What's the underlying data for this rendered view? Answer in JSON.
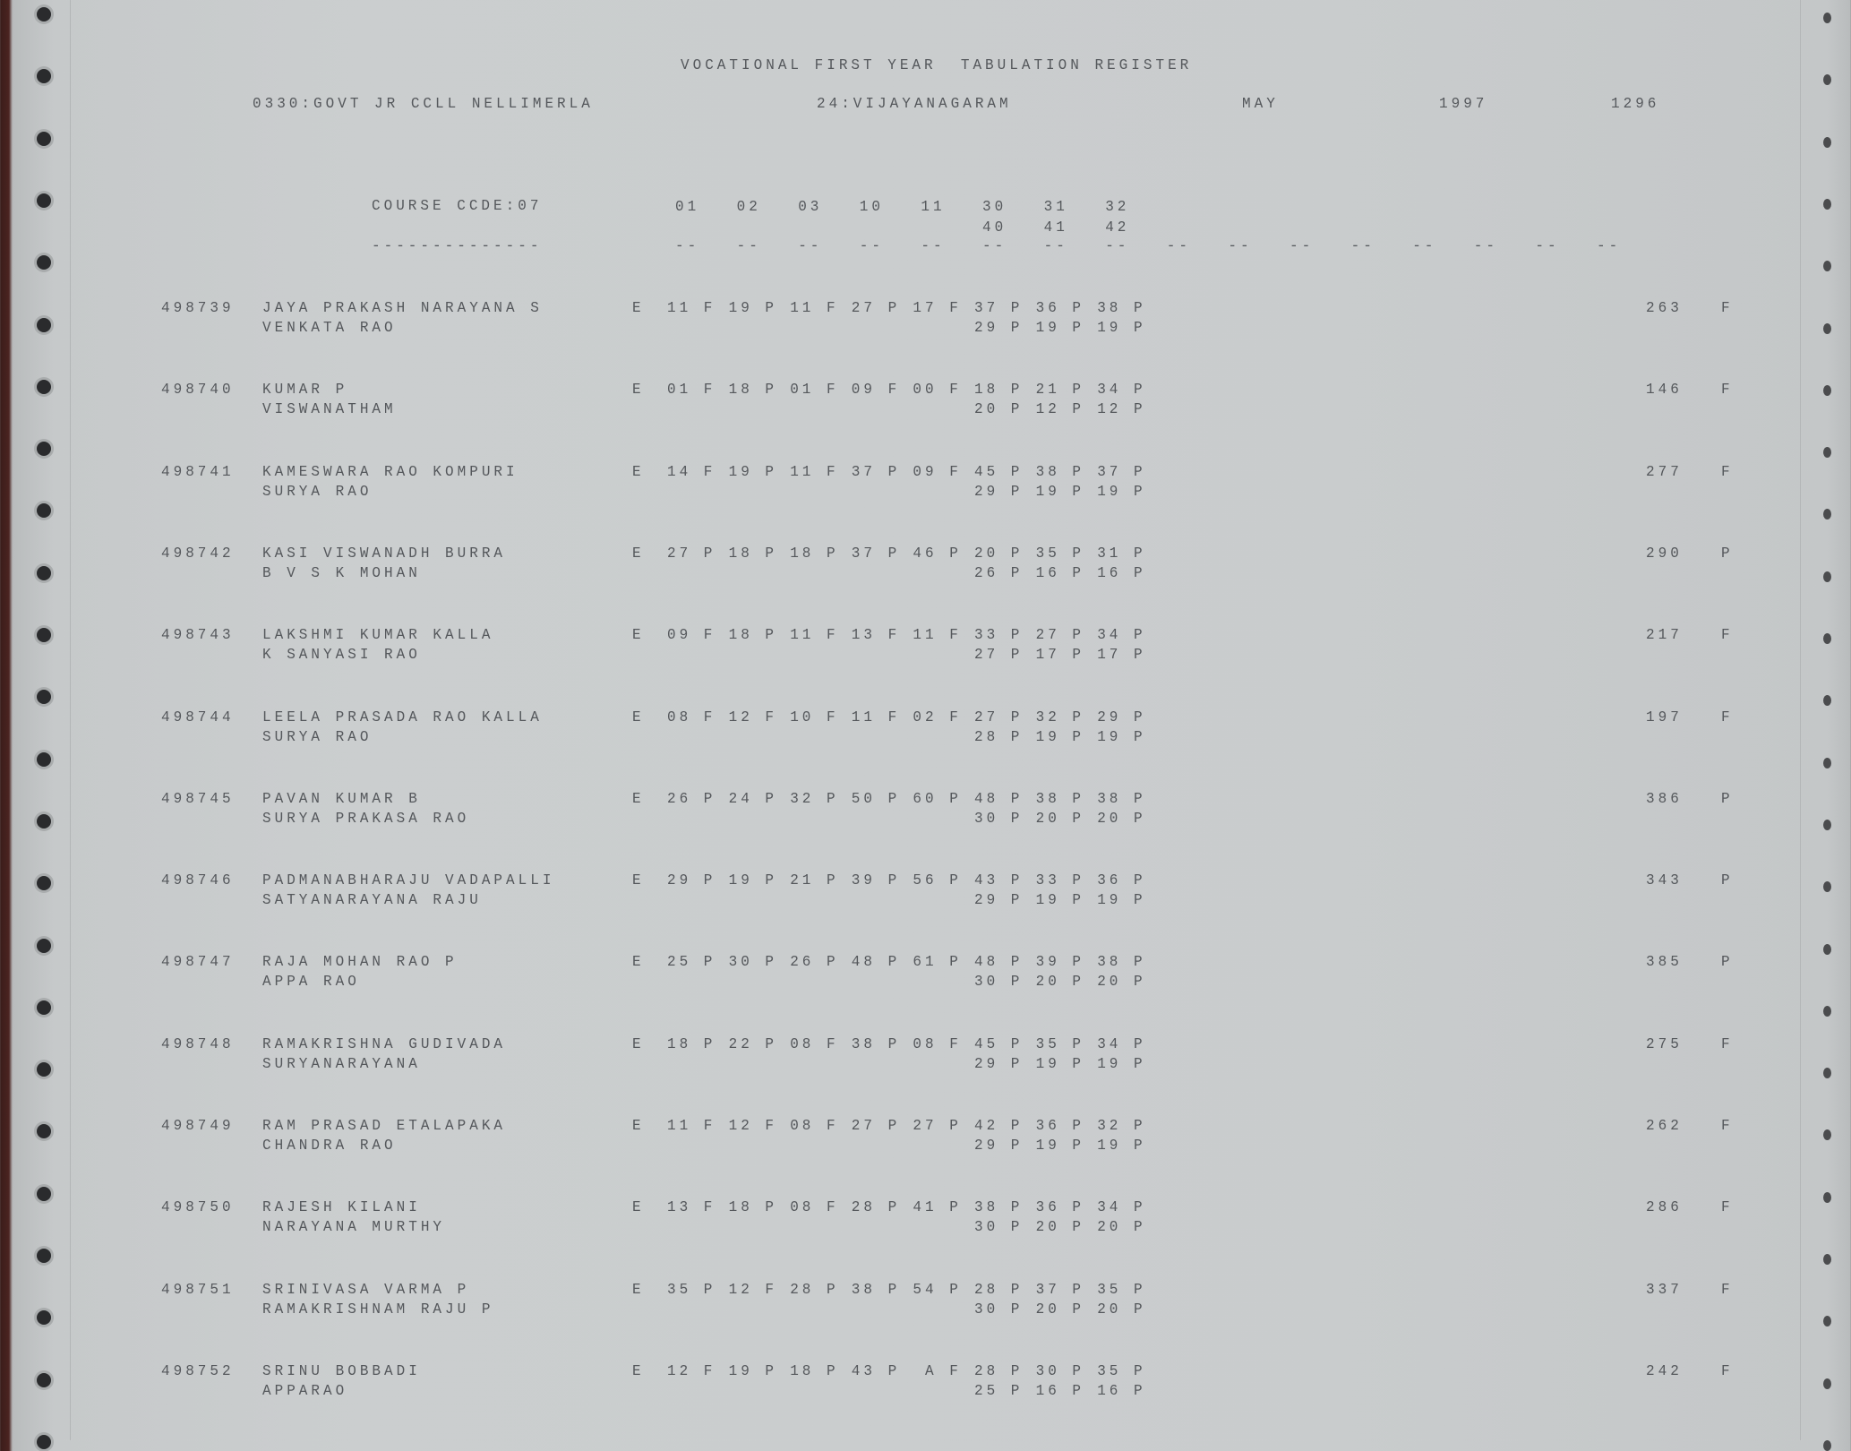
{
  "report": {
    "title": "VOCATIONAL FIRST YEAR  TABULATION REGISTER",
    "college": "0330:GOVT JR CCLL NELLIMERLA",
    "district": "24:VIJAYANAGARAM",
    "month": "MAY",
    "year": "1997",
    "page_number": "1296",
    "course_code": "COURSE CCDE:07",
    "course_underline": "--------------",
    "subject_codes": [
      "01",
      "02",
      "03",
      "10",
      "11",
      "30",
      "31",
      "32"
    ],
    "subject_codes_2": [
      "40",
      "41",
      "42"
    ],
    "dash_group": "--",
    "dash_group_count": 16
  },
  "students": [
    {
      "roll": "498739",
      "name": "JAYA PRAKASH NARAYANA S",
      "father": "VENKATA RAO",
      "medium": "E",
      "marks": [
        "11 F",
        "19 P",
        "11 F",
        "27 P",
        "17 F",
        "37 P",
        "36 P",
        "38 P"
      ],
      "marks2": [
        "29 P",
        "19 P",
        "19 P"
      ],
      "total": "263",
      "result": "F"
    },
    {
      "roll": "498740",
      "name": "KUMAR P",
      "father": "VISWANATHAM",
      "medium": "E",
      "marks": [
        "01 F",
        "18 P",
        "01 F",
        "09 F",
        "00 F",
        "18 P",
        "21 P",
        "34 P"
      ],
      "marks2": [
        "20 P",
        "12 P",
        "12 P"
      ],
      "total": "146",
      "result": "F"
    },
    {
      "roll": "498741",
      "name": "KAMESWARA RAO KOMPURI",
      "father": "SURYA RAO",
      "medium": "E",
      "marks": [
        "14 F",
        "19 P",
        "11 F",
        "37 P",
        "09 F",
        "45 P",
        "38 P",
        "37 P"
      ],
      "marks2": [
        "29 P",
        "19 P",
        "19 P"
      ],
      "total": "277",
      "result": "F"
    },
    {
      "roll": "498742",
      "name": "KASI VISWANADH BURRA",
      "father": "B V S K MOHAN",
      "medium": "E",
      "marks": [
        "27 P",
        "18 P",
        "18 P",
        "37 P",
        "46 P",
        "20 P",
        "35 P",
        "31 P"
      ],
      "marks2": [
        "26 P",
        "16 P",
        "16 P"
      ],
      "total": "290",
      "result": "P"
    },
    {
      "roll": "498743",
      "name": "LAKSHMI KUMAR KALLA",
      "father": "K SANYASI RAO",
      "medium": "E",
      "marks": [
        "09 F",
        "18 P",
        "11 F",
        "13 F",
        "11 F",
        "33 P",
        "27 P",
        "34 P"
      ],
      "marks2": [
        "27 P",
        "17 P",
        "17 P"
      ],
      "total": "217",
      "result": "F"
    },
    {
      "roll": "498744",
      "name": "LEELA PRASADA RAO KALLA",
      "father": "SURYA RAO",
      "medium": "E",
      "marks": [
        "08 F",
        "12 F",
        "10 F",
        "11 F",
        "02 F",
        "27 P",
        "32 P",
        "29 P"
      ],
      "marks2": [
        "28 P",
        "19 P",
        "19 P"
      ],
      "total": "197",
      "result": "F"
    },
    {
      "roll": "498745",
      "name": "PAVAN KUMAR B",
      "father": "SURYA PRAKASA RAO",
      "medium": "E",
      "marks": [
        "26 P",
        "24 P",
        "32 P",
        "50 P",
        "60 P",
        "48 P",
        "38 P",
        "38 P"
      ],
      "marks2": [
        "30 P",
        "20 P",
        "20 P"
      ],
      "total": "386",
      "result": "P"
    },
    {
      "roll": "498746",
      "name": "PADMANABHARAJU VADAPALLI",
      "father": "SATYANARAYANA RAJU",
      "medium": "E",
      "marks": [
        "29 P",
        "19 P",
        "21 P",
        "39 P",
        "56 P",
        "43 P",
        "33 P",
        "36 P"
      ],
      "marks2": [
        "29 P",
        "19 P",
        "19 P"
      ],
      "total": "343",
      "result": "P"
    },
    {
      "roll": "498747",
      "name": "RAJA MOHAN RAO P",
      "father": "APPA RAO",
      "medium": "E",
      "marks": [
        "25 P",
        "30 P",
        "26 P",
        "48 P",
        "61 P",
        "48 P",
        "39 P",
        "38 P"
      ],
      "marks2": [
        "30 P",
        "20 P",
        "20 P"
      ],
      "total": "385",
      "result": "P"
    },
    {
      "roll": "498748",
      "name": "RAMAKRISHNA GUDIVADA",
      "father": "SURYANARAYANA",
      "medium": "E",
      "marks": [
        "18 P",
        "22 P",
        "08 F",
        "38 P",
        "08 F",
        "45 P",
        "35 P",
        "34 P"
      ],
      "marks2": [
        "29 P",
        "19 P",
        "19 P"
      ],
      "total": "275",
      "result": "F"
    },
    {
      "roll": "498749",
      "name": "RAM PRASAD ETALAPAKA",
      "father": "CHANDRA RAO",
      "medium": "E",
      "marks": [
        "11 F",
        "12 F",
        "08 F",
        "27 P",
        "27 P",
        "42 P",
        "36 P",
        "32 P"
      ],
      "marks2": [
        "29 P",
        "19 P",
        "19 P"
      ],
      "total": "262",
      "result": "F"
    },
    {
      "roll": "498750",
      "name": "RAJESH KILANI",
      "father": "NARAYANA MURTHY",
      "medium": "E",
      "marks": [
        "13 F",
        "18 P",
        "08 F",
        "28 P",
        "41 P",
        "38 P",
        "36 P",
        "34 P"
      ],
      "marks2": [
        "30 P",
        "20 P",
        "20 P"
      ],
      "total": "286",
      "result": "F"
    },
    {
      "roll": "498751",
      "name": "SRINIVASA VARMA P",
      "father": "RAMAKRISHNAM RAJU P",
      "medium": "E",
      "marks": [
        "35 P",
        "12 F",
        "28 P",
        "38 P",
        "54 P",
        "28 P",
        "37 P",
        "35 P"
      ],
      "marks2": [
        "30 P",
        "20 P",
        "20 P"
      ],
      "total": "337",
      "result": "F"
    },
    {
      "roll": "498752",
      "name": "SRINU BOBBADI",
      "father": "APPARAO",
      "medium": "E",
      "marks": [
        "12 F",
        "19 P",
        "18 P",
        "43 P",
        " A F",
        "28 P",
        "30 P",
        "35 P"
      ],
      "marks2": [
        "25 P",
        "16 P",
        "16 P"
      ],
      "total": "242",
      "result": "F"
    }
  ]
}
